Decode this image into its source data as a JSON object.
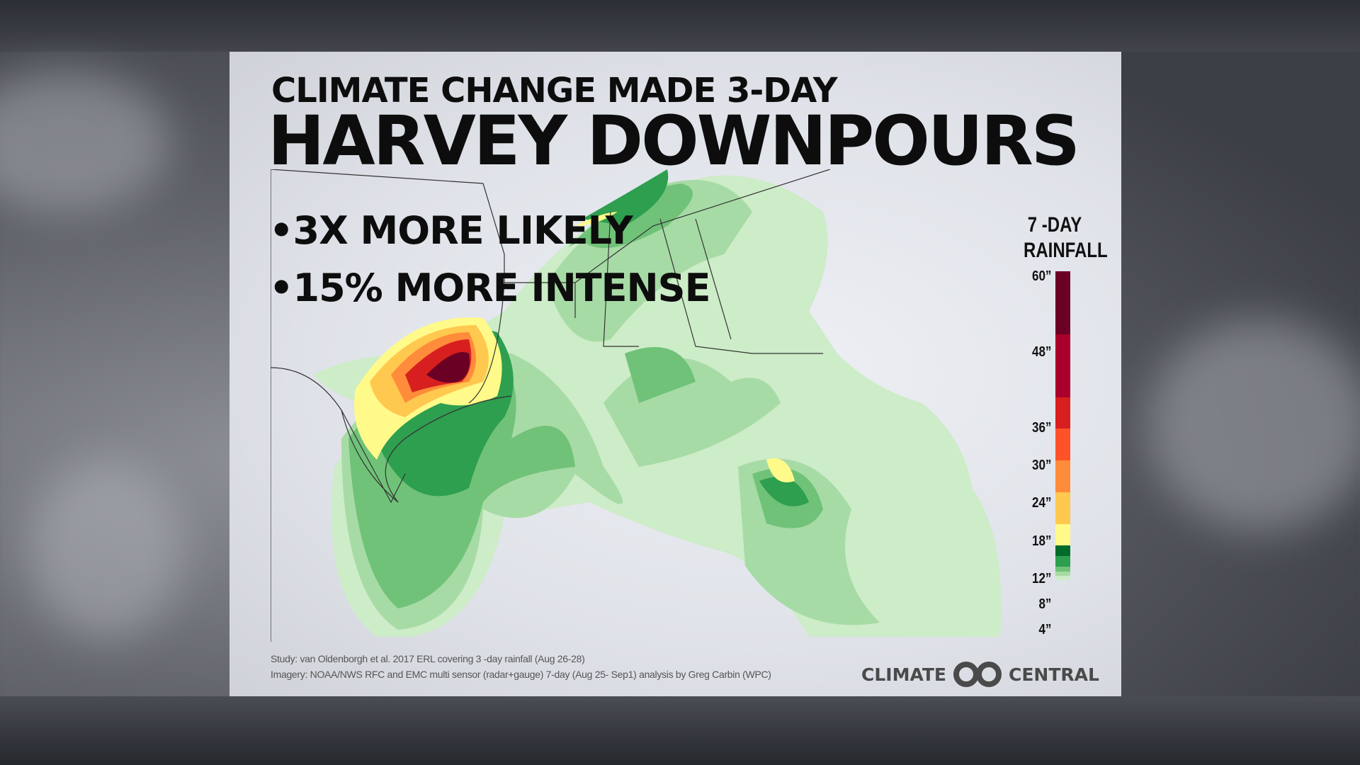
{
  "title": {
    "line1": "CLIMATE CHANGE MADE 3-DAY",
    "line2": "HARVEY DOWNPOURS"
  },
  "bullets": [
    "•3X MORE LIKELY",
    "•15% MORE INTENSE"
  ],
  "legend": {
    "title_line1": "7 -DAY",
    "title_line2": "RAINFALL",
    "ticks": [
      "60”",
      "48”",
      "36”",
      "30”",
      "24”",
      "18”",
      "12”",
      "8”",
      "4”"
    ],
    "colors": [
      "#6b0025",
      "#a8002a",
      "#d81f1f",
      "#ff5229",
      "#ff8c3a",
      "#ffc84f",
      "#fffa8a",
      "#006b2b",
      "#2e9e4f",
      "#70c278",
      "#a7dba5",
      "#cdecc8"
    ]
  },
  "footer": {
    "study": "Study: van Oldenborgh et al. 2017 ERL covering 3 -day rainfall (Aug 26-28)",
    "imagery": "Imagery: NOAA/NWS RFC and EMC multi sensor (radar+gauge) 7-day (Aug 25- Sep1) analysis by Greg Carbin (WPC)"
  },
  "logo": {
    "left": "CLIMATE",
    "right": "CENTRAL"
  }
}
